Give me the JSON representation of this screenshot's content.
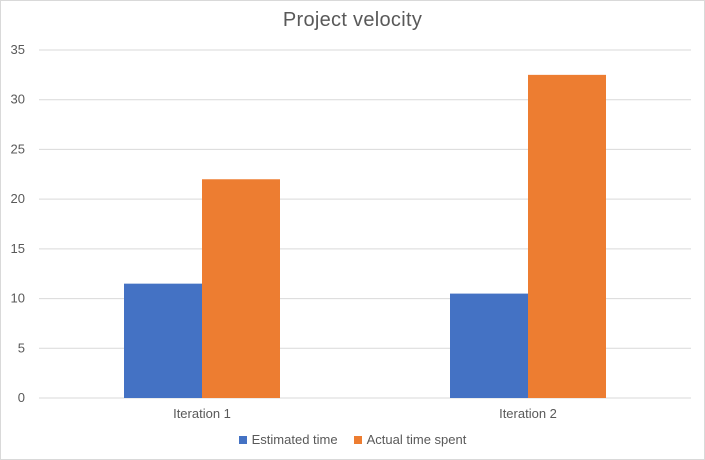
{
  "chart_data": {
    "type": "bar",
    "title": "Project velocity",
    "categories": [
      "Iteration 1",
      "Iteration 2"
    ],
    "series": [
      {
        "name": "Estimated time",
        "values": [
          11.5,
          10.5
        ],
        "color": "#4472c4"
      },
      {
        "name": "Actual time spent",
        "values": [
          22,
          32.5
        ],
        "color": "#ed7d31"
      }
    ],
    "ylim": [
      0,
      35
    ],
    "yticks": [
      0,
      5,
      10,
      15,
      20,
      25,
      30,
      35
    ],
    "grid": true,
    "legend_position": "bottom"
  }
}
